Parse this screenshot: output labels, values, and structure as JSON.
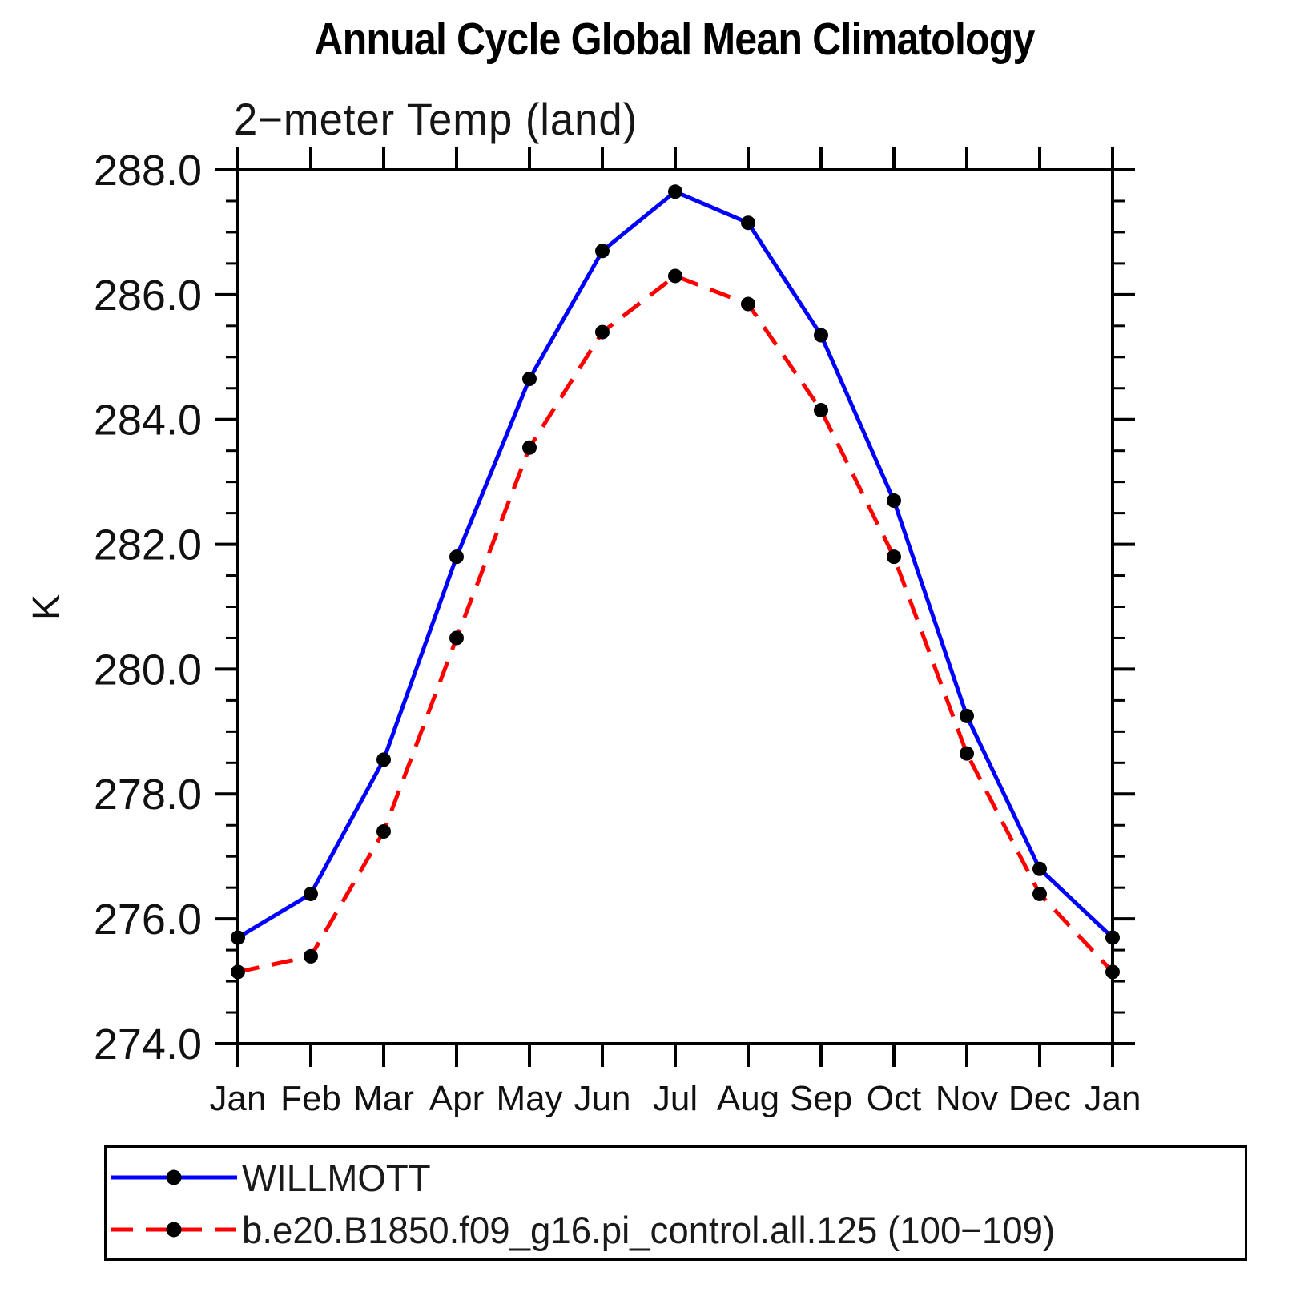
{
  "header": {
    "title": "Annual Cycle Global Mean Climatology",
    "subtitle": "2−meter Temp (land)"
  },
  "chart_data": {
    "type": "line",
    "title": "Annual Cycle Global Mean Climatology",
    "subtitle": "2−meter Temp (land)",
    "ylabel": "K",
    "xlabel": "",
    "categories": [
      "Jan",
      "Feb",
      "Mar",
      "Apr",
      "May",
      "Jun",
      "Jul",
      "Aug",
      "Sep",
      "Oct",
      "Nov",
      "Dec",
      "Jan"
    ],
    "ylim": [
      274.0,
      288.0
    ],
    "ytick_values": [
      274,
      276,
      278,
      280,
      282,
      284,
      286,
      288
    ],
    "ytick_labels": [
      "274.0",
      "276.0",
      "278.0",
      "280.0",
      "282.0",
      "284.0",
      "286.0",
      "288.0"
    ],
    "yminor_step": 0.5,
    "grid": false,
    "legend_position": "bottom",
    "marker_color": "#000000",
    "axis_color": "#000000",
    "series": [
      {
        "name": "WILLMOTT",
        "color": "#0000ff",
        "line_style": "solid",
        "values": [
          275.7,
          276.4,
          278.55,
          281.8,
          284.65,
          286.7,
          287.65,
          287.15,
          285.35,
          282.7,
          279.25,
          276.8,
          275.7
        ]
      },
      {
        "name": "b.e20.B1850.f09_g16.pi_control.all.125 (100−109)",
        "color": "#ff0000",
        "line_style": "dashed",
        "values": [
          275.15,
          275.4,
          277.4,
          280.5,
          283.55,
          285.4,
          286.3,
          285.85,
          284.15,
          281.8,
          278.65,
          276.4,
          275.15
        ]
      }
    ]
  }
}
